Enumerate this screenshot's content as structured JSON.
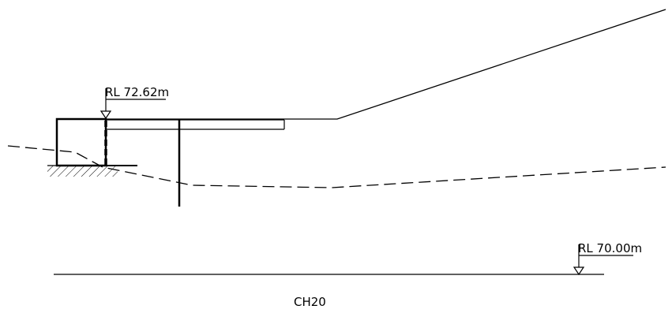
{
  "labels": {
    "rl_top": "RL  72.62m",
    "rl_bottom": "RL  70.00m",
    "chainage": "CH20"
  },
  "colors": {
    "line": "#000000",
    "background": "#ffffff"
  }
}
